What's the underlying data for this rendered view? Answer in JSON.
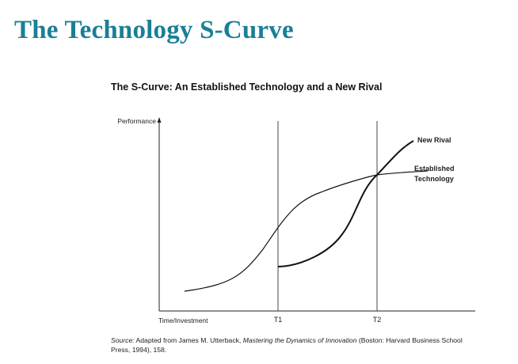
{
  "slide": {
    "title": "The Technology S-Curve"
  },
  "figure": {
    "title": "The S-Curve: An Established Technology and a New Rival",
    "y_axis_label": "Performance",
    "x_axis_label": "Time/Investment",
    "markers": [
      {
        "label": "T1"
      },
      {
        "label": "T2"
      }
    ],
    "curves": [
      {
        "label_lines": [
          "New Rival"
        ]
      },
      {
        "label_lines": [
          "Established",
          "Technology"
        ]
      }
    ],
    "source": {
      "prefix": "Source:",
      "text_before": " Adapted from James M. Utterback, ",
      "book_title": "Mastering the Dynamics of Innovation",
      "text_after": " (Boston: Harvard Business School Press, 1994), 158."
    }
  },
  "colors": {
    "title": "#1a7f96",
    "ink": "#111111"
  }
}
